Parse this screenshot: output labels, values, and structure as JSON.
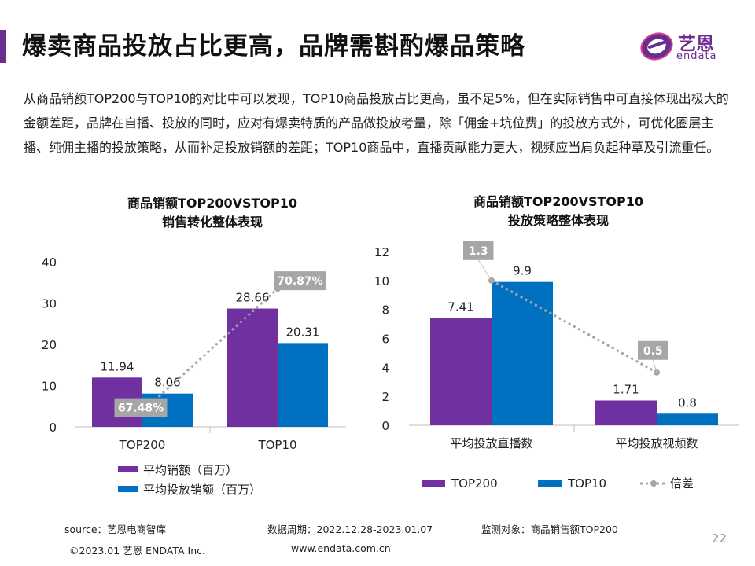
{
  "header": {
    "title": "爆卖商品投放占比更高，品牌需斟酌爆品策略",
    "logo_cn": "艺恩",
    "logo_en": "endata"
  },
  "body_text": "从商品销额TOP200与TOP10的对比中可以发现，TOP10商品投放占比更高，虽不足5%，但在实际销售中可直接体现出极大的金额差距，品牌在自播、投放的同时，应对有爆卖特质的产品做投放考量，除「佣金+坑位费」的投放方式外，可优化圈层主播、纯佣主播的投放策略，从而补足投放销额的差距；TOP10商品中，直播贡献能力更大，视频应当肩负起种草及引流重任。",
  "colors": {
    "purple": "#7030a0",
    "blue": "#0070c0",
    "ratio": "#a6a6a6",
    "accent": "#6a2c8f"
  },
  "chart_data": [
    {
      "type": "bar",
      "title_line1": "商品销额TOP200VSTOP10",
      "title_line2": "销售转化整体表现",
      "categories": [
        "TOP200",
        "TOP10"
      ],
      "series": [
        {
          "name": "平均销额（百万）",
          "values": [
            11.94,
            28.66
          ],
          "labels": [
            "11.94",
            "28.66"
          ]
        },
        {
          "name": "平均投放销额（百万）",
          "values": [
            8.06,
            20.31
          ],
          "labels": [
            "8.06",
            "20.31"
          ]
        }
      ],
      "ratio": {
        "name": "",
        "values": [
          0.6748,
          0.7087
        ],
        "labels": [
          "67.48%",
          "70.87%"
        ],
        "plot_y": [
          3.7,
          33.5
        ]
      },
      "yticks": [
        "0",
        "10",
        "20",
        "30",
        "40"
      ],
      "ylim": [
        0,
        40
      ],
      "legend": "bottom"
    },
    {
      "type": "bar",
      "title_line1": "商品销额TOP200VSTOP10",
      "title_line2": "投放策略整体表现",
      "categories": [
        "平均投放直播数",
        "平均投放视频数"
      ],
      "series": [
        {
          "name": "TOP200",
          "values": [
            7.41,
            1.71
          ],
          "labels": [
            "7.41",
            "1.71"
          ]
        },
        {
          "name": "TOP10",
          "values": [
            9.9,
            0.8
          ],
          "labels": [
            "9.9",
            "0.8"
          ]
        }
      ],
      "ratio": {
        "name": "倍差",
        "values": [
          1.3,
          0.5
        ],
        "labels": [
          "1.3",
          "0.5"
        ],
        "plot_y": [
          10.0,
          3.65
        ]
      },
      "yticks": [
        "0",
        "2",
        "4",
        "6",
        "8",
        "10",
        "12"
      ],
      "ylim": [
        0,
        12
      ],
      "legend": "bottom"
    }
  ],
  "footer": {
    "source": "source：艺恩电商智库",
    "period": "数据周期：2022.12.28-2023.01.07",
    "target": "监测对象：商品销售额TOP200",
    "copyright": "©2023.01 艺恩 ENDATA Inc.",
    "website": "www.endata.com.cn",
    "page": "22"
  }
}
